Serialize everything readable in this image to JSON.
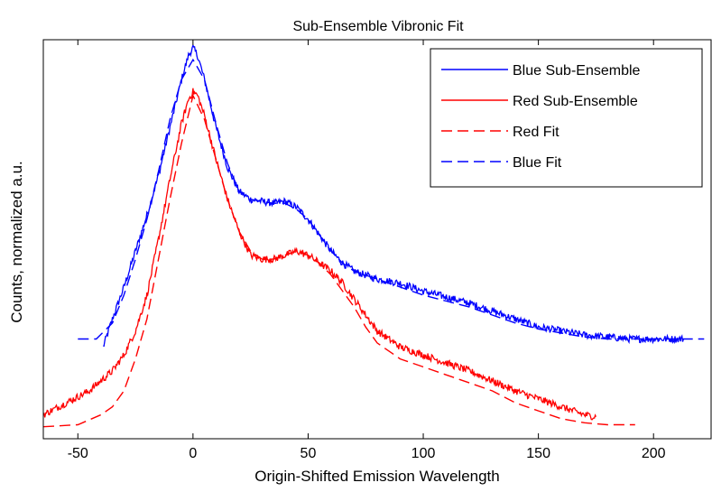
{
  "chart_data": {
    "type": "line",
    "title": "Sub-Ensemble Vibronic Fit",
    "xlabel": "Origin-Shifted Emission Wavelength",
    "ylabel": "Counts, normalized a.u.",
    "xlim": [
      -65,
      225
    ],
    "ylim": [
      0,
      1
    ],
    "xticks": [
      -50,
      0,
      50,
      100,
      150,
      200
    ],
    "xtick_labels": [
      "-50",
      "0",
      "50",
      "100",
      "150",
      "200"
    ],
    "yticks_shown": false,
    "grid": false,
    "legend_position": "top-right",
    "series": [
      {
        "name": "Blue Sub-Ensemble",
        "color": "#0000ff",
        "style": "solid",
        "noisy": true,
        "x": [
          -39,
          -35,
          -30,
          -25,
          -20,
          -15,
          -10,
          -5,
          -2,
          0,
          2,
          5,
          10,
          15,
          20,
          25,
          30,
          35,
          40,
          45,
          50,
          55,
          60,
          65,
          70,
          75,
          80,
          90,
          100,
          110,
          120,
          130,
          140,
          150,
          160,
          170,
          180,
          190,
          200,
          213
        ],
        "y": [
          0.23,
          0.3,
          0.38,
          0.47,
          0.56,
          0.66,
          0.78,
          0.9,
          0.96,
          0.98,
          0.96,
          0.9,
          0.78,
          0.68,
          0.62,
          0.6,
          0.595,
          0.59,
          0.595,
          0.58,
          0.55,
          0.51,
          0.47,
          0.44,
          0.42,
          0.41,
          0.4,
          0.39,
          0.37,
          0.355,
          0.34,
          0.32,
          0.3,
          0.28,
          0.27,
          0.26,
          0.255,
          0.25,
          0.25,
          0.25
        ]
      },
      {
        "name": "Red Sub-Ensemble",
        "color": "#ff0000",
        "style": "solid",
        "noisy": true,
        "x": [
          -65,
          -55,
          -45,
          -40,
          -35,
          -30,
          -25,
          -20,
          -15,
          -10,
          -5,
          -2,
          0,
          2,
          5,
          10,
          15,
          20,
          25,
          30,
          35,
          40,
          45,
          50,
          55,
          60,
          65,
          70,
          75,
          80,
          90,
          100,
          110,
          120,
          130,
          140,
          150,
          160,
          170,
          175
        ],
        "y": [
          0.06,
          0.09,
          0.12,
          0.145,
          0.17,
          0.21,
          0.27,
          0.36,
          0.5,
          0.65,
          0.79,
          0.85,
          0.87,
          0.86,
          0.81,
          0.7,
          0.6,
          0.52,
          0.46,
          0.45,
          0.45,
          0.46,
          0.47,
          0.46,
          0.44,
          0.42,
          0.39,
          0.35,
          0.31,
          0.27,
          0.23,
          0.21,
          0.19,
          0.17,
          0.145,
          0.12,
          0.1,
          0.08,
          0.06,
          0.055
        ]
      },
      {
        "name": "Red Fit",
        "color": "#ff0000",
        "style": "dashed",
        "noisy": false,
        "x": [
          -65,
          -50,
          -40,
          -35,
          -30,
          -25,
          -20,
          -15,
          -10,
          -5,
          0,
          5,
          10,
          15,
          20,
          25,
          30,
          35,
          40,
          45,
          50,
          55,
          60,
          65,
          70,
          75,
          80,
          90,
          100,
          110,
          120,
          130,
          140,
          150,
          160,
          170,
          180,
          192
        ],
        "y": [
          0.03,
          0.035,
          0.06,
          0.08,
          0.12,
          0.2,
          0.3,
          0.45,
          0.6,
          0.74,
          0.86,
          0.8,
          0.7,
          0.6,
          0.52,
          0.47,
          0.45,
          0.45,
          0.46,
          0.47,
          0.46,
          0.44,
          0.41,
          0.37,
          0.33,
          0.28,
          0.24,
          0.2,
          0.18,
          0.16,
          0.14,
          0.12,
          0.09,
          0.07,
          0.05,
          0.04,
          0.035,
          0.035
        ]
      },
      {
        "name": "Blue Fit",
        "color": "#0000ff",
        "style": "dashed",
        "noisy": false,
        "x": [
          -50,
          -42,
          -35,
          -30,
          -25,
          -20,
          -15,
          -10,
          -5,
          0,
          5,
          10,
          15,
          20,
          25,
          30,
          35,
          40,
          45,
          50,
          55,
          60,
          65,
          70,
          80,
          90,
          100,
          110,
          120,
          130,
          140,
          150,
          160,
          170,
          180,
          190,
          200,
          210,
          222
        ],
        "y": [
          0.25,
          0.25,
          0.29,
          0.36,
          0.45,
          0.55,
          0.67,
          0.8,
          0.9,
          0.95,
          0.9,
          0.79,
          0.69,
          0.62,
          0.6,
          0.595,
          0.59,
          0.59,
          0.575,
          0.55,
          0.51,
          0.47,
          0.44,
          0.42,
          0.4,
          0.38,
          0.36,
          0.345,
          0.33,
          0.31,
          0.29,
          0.275,
          0.265,
          0.255,
          0.25,
          0.25,
          0.25,
          0.25,
          0.25
        ]
      }
    ]
  }
}
